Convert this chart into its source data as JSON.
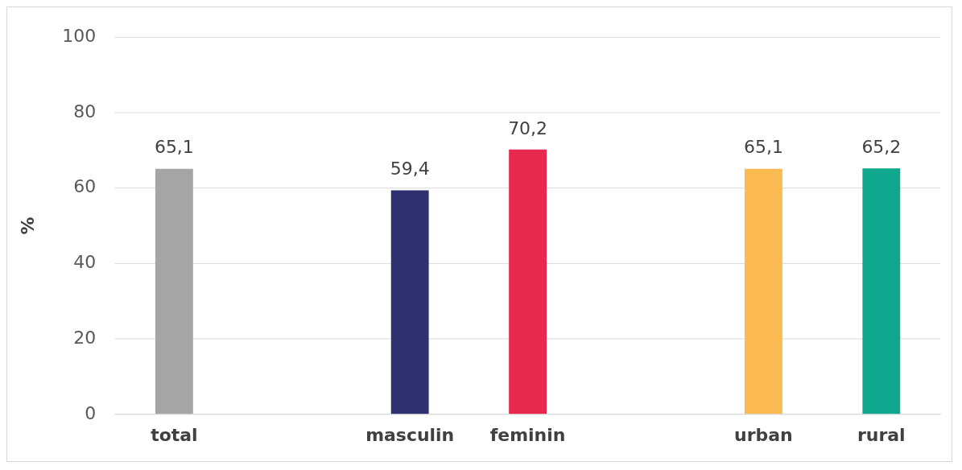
{
  "chart_data": {
    "type": "bar",
    "ylabel": "%",
    "categories": [
      "total",
      null,
      "masculin",
      "feminin",
      null,
      "urban",
      "rural"
    ],
    "values": [
      65.1,
      null,
      59.4,
      70.2,
      null,
      65.1,
      65.2
    ],
    "colors": [
      "#a5a5a5",
      "#a5a5a5",
      "#2e316e",
      "#e8294f",
      "#a5a5a5",
      "#fbba52",
      "#0fa88e"
    ],
    "value_labels": [
      "65,1",
      null,
      "59,4",
      "70,2",
      null,
      "65,1",
      "65,2"
    ],
    "ylim": [
      0,
      100
    ],
    "yticks": [
      0,
      20,
      40,
      60,
      80,
      100
    ],
    "grid": "y",
    "legend": false
  }
}
